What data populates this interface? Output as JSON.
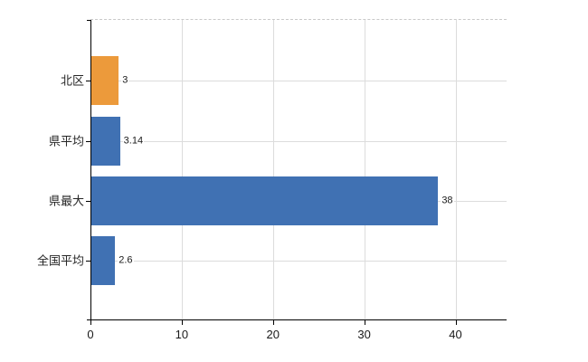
{
  "chart_data": {
    "type": "bar",
    "orientation": "horizontal",
    "title": "",
    "xlabel": "",
    "ylabel": "",
    "categories": [
      "北区",
      "県平均",
      "県最大",
      "全国平均"
    ],
    "values": [
      3,
      3.14,
      38,
      2.6
    ],
    "value_labels": [
      "3",
      "3.14",
      "38",
      "2.6"
    ],
    "bar_colors": [
      "#EC9A3B",
      "#4071B3",
      "#4071B3",
      "#4071B3"
    ],
    "x_tick_labels": [
      "0",
      "10",
      "20",
      "30",
      "40"
    ],
    "x_tick_values": [
      0,
      10,
      20,
      30,
      40
    ],
    "xlim": [
      0,
      45.6
    ],
    "grid": true,
    "legend": "none",
    "colors": {
      "background": "#FFFFFF",
      "bar_highlight_orange": "#EC9A3B",
      "bar_default_blue": "#4071B3",
      "axis": "#000000",
      "gridline": "#DCDCDC",
      "plot_top_border": "#C9C9C9",
      "value_label_text": "#1A1A1A",
      "category_label_text": "#262626",
      "tick_label_text": "#1A1A1A"
    }
  }
}
